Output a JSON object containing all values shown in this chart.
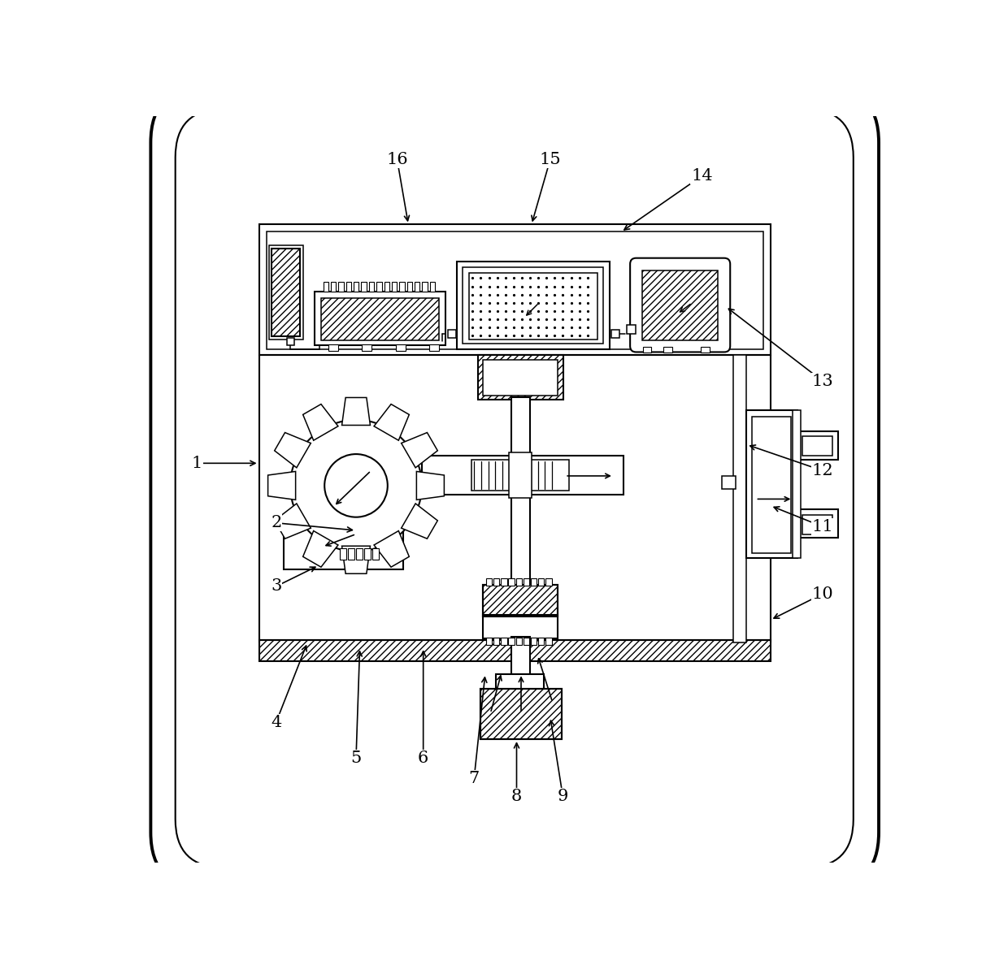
{
  "fig_width": 12.4,
  "fig_height": 11.93,
  "bg": "#ffffff",
  "lc": "#000000"
}
